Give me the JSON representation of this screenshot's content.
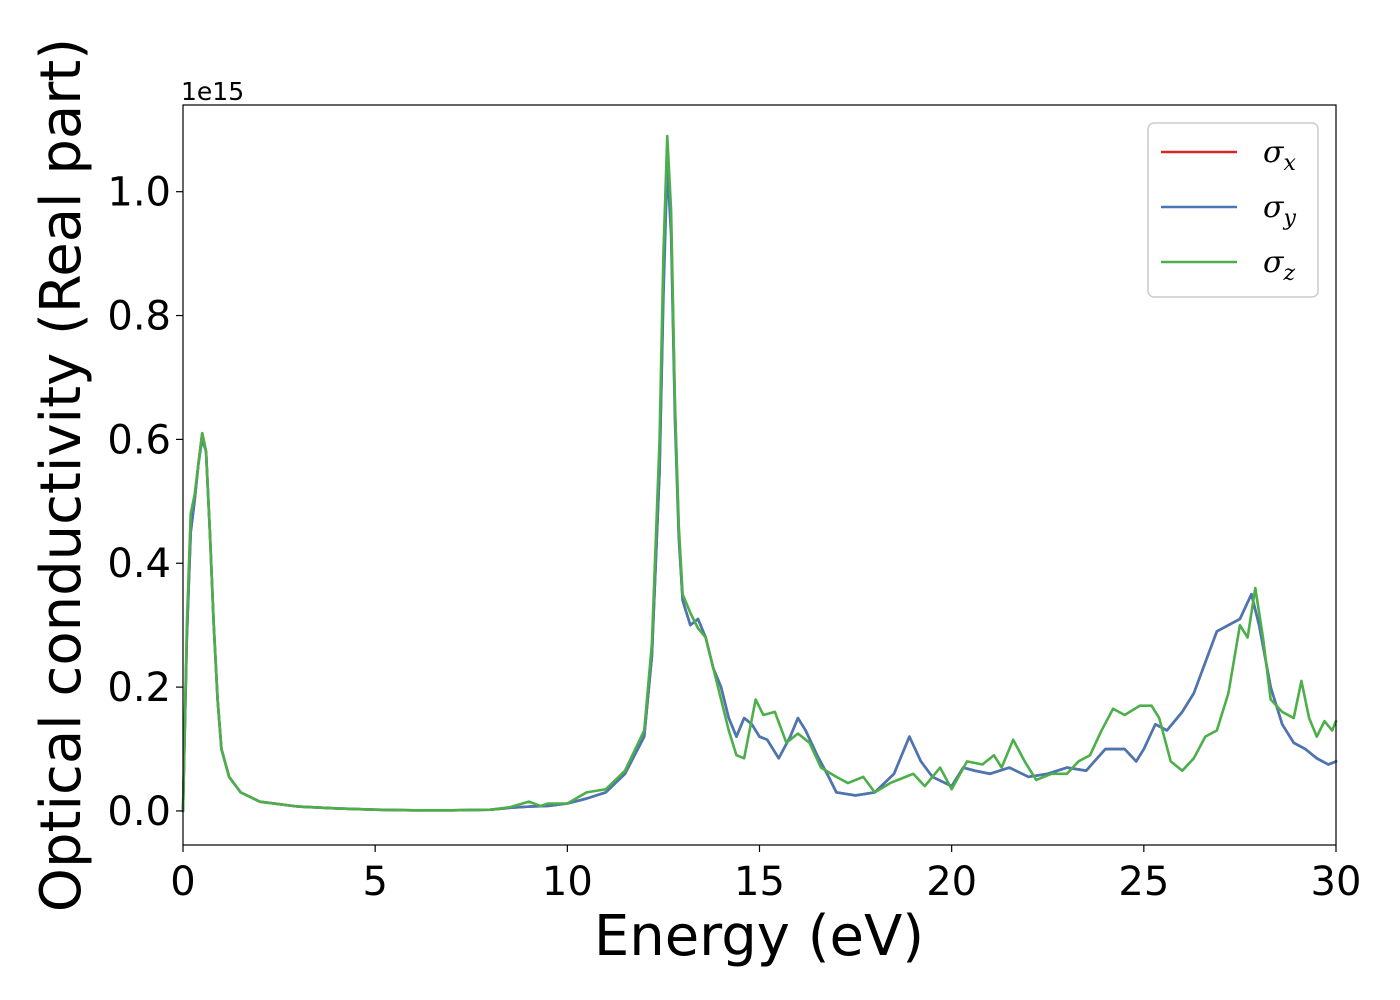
{
  "chart_data": {
    "type": "line",
    "xlabel": "Energy (eV)",
    "ylabel": "Optical conductivity (Real part)",
    "y_offset_label": "1e15",
    "y_scale_factor": 1000000000000000.0,
    "xlim": [
      0,
      30
    ],
    "ylim": [
      -0.055,
      1.14
    ],
    "x_ticks": [
      0,
      5,
      10,
      15,
      20,
      25,
      30
    ],
    "y_ticks": [
      0.0,
      0.2,
      0.4,
      0.6,
      0.8,
      1.0
    ],
    "x_tick_labels": [
      "0",
      "5",
      "10",
      "15",
      "20",
      "25",
      "30"
    ],
    "y_tick_labels": [
      "0.0",
      "0.2",
      "0.4",
      "0.6",
      "0.8",
      "1.0"
    ],
    "grid": false,
    "legend_position": "top-right",
    "series": [
      {
        "name": "σx",
        "color": "#d62728",
        "points": [
          [
            0,
            0.0
          ],
          [
            0.1,
            0.28
          ],
          [
            0.2,
            0.45
          ],
          [
            0.3,
            0.5
          ],
          [
            0.4,
            0.56
          ],
          [
            0.5,
            0.61
          ],
          [
            0.6,
            0.58
          ],
          [
            0.7,
            0.45
          ],
          [
            0.8,
            0.3
          ],
          [
            0.9,
            0.18
          ],
          [
            1.0,
            0.1
          ],
          [
            1.2,
            0.055
          ],
          [
            1.5,
            0.03
          ],
          [
            2.0,
            0.015
          ],
          [
            3.0,
            0.007
          ],
          [
            4.0,
            0.004
          ],
          [
            5.0,
            0.002
          ],
          [
            6.0,
            0.001
          ],
          [
            7.0,
            0.001
          ],
          [
            8.0,
            0.002
          ],
          [
            8.5,
            0.005
          ],
          [
            9.0,
            0.007
          ],
          [
            9.5,
            0.008
          ],
          [
            10.0,
            0.012
          ],
          [
            10.5,
            0.02
          ],
          [
            11.0,
            0.03
          ],
          [
            11.5,
            0.06
          ],
          [
            12.0,
            0.12
          ],
          [
            12.2,
            0.25
          ],
          [
            12.4,
            0.55
          ],
          [
            12.5,
            0.85
          ],
          [
            12.6,
            1.06
          ],
          [
            12.7,
            0.95
          ],
          [
            12.8,
            0.65
          ],
          [
            12.9,
            0.45
          ],
          [
            13.0,
            0.34
          ],
          [
            13.2,
            0.3
          ],
          [
            13.4,
            0.31
          ],
          [
            13.6,
            0.28
          ],
          [
            13.8,
            0.23
          ],
          [
            14.0,
            0.2
          ],
          [
            14.2,
            0.15
          ],
          [
            14.4,
            0.12
          ],
          [
            14.6,
            0.15
          ],
          [
            14.8,
            0.14
          ],
          [
            15.0,
            0.12
          ],
          [
            15.2,
            0.115
          ],
          [
            15.5,
            0.085
          ],
          [
            15.8,
            0.12
          ],
          [
            16.0,
            0.15
          ],
          [
            16.2,
            0.13
          ],
          [
            16.5,
            0.09
          ],
          [
            16.8,
            0.055
          ],
          [
            17.0,
            0.03
          ],
          [
            17.5,
            0.025
          ],
          [
            18.0,
            0.03
          ],
          [
            18.5,
            0.06
          ],
          [
            18.9,
            0.12
          ],
          [
            19.2,
            0.08
          ],
          [
            19.5,
            0.055
          ],
          [
            20.0,
            0.04
          ],
          [
            20.3,
            0.07
          ],
          [
            20.6,
            0.065
          ],
          [
            21.0,
            0.06
          ],
          [
            21.5,
            0.07
          ],
          [
            22.0,
            0.055
          ],
          [
            22.5,
            0.06
          ],
          [
            23.0,
            0.07
          ],
          [
            23.5,
            0.065
          ],
          [
            24.0,
            0.1
          ],
          [
            24.5,
            0.1
          ],
          [
            24.8,
            0.08
          ],
          [
            25.0,
            0.1
          ],
          [
            25.3,
            0.14
          ],
          [
            25.6,
            0.13
          ],
          [
            26.0,
            0.16
          ],
          [
            26.3,
            0.19
          ],
          [
            26.6,
            0.24
          ],
          [
            26.9,
            0.29
          ],
          [
            27.2,
            0.3
          ],
          [
            27.5,
            0.31
          ],
          [
            27.8,
            0.35
          ],
          [
            28.0,
            0.3
          ],
          [
            28.3,
            0.2
          ],
          [
            28.6,
            0.14
          ],
          [
            28.9,
            0.11
          ],
          [
            29.2,
            0.1
          ],
          [
            29.5,
            0.085
          ],
          [
            29.8,
            0.075
          ],
          [
            30.0,
            0.08
          ]
        ]
      },
      {
        "name": "σy",
        "color": "#4878b4",
        "points": [
          [
            0,
            0.0
          ],
          [
            0.1,
            0.28
          ],
          [
            0.2,
            0.45
          ],
          [
            0.3,
            0.5
          ],
          [
            0.4,
            0.56
          ],
          [
            0.5,
            0.6
          ],
          [
            0.6,
            0.58
          ],
          [
            0.7,
            0.45
          ],
          [
            0.8,
            0.3
          ],
          [
            0.9,
            0.18
          ],
          [
            1.0,
            0.1
          ],
          [
            1.2,
            0.055
          ],
          [
            1.5,
            0.03
          ],
          [
            2.0,
            0.015
          ],
          [
            3.0,
            0.007
          ],
          [
            4.0,
            0.004
          ],
          [
            5.0,
            0.002
          ],
          [
            6.0,
            0.001
          ],
          [
            7.0,
            0.001
          ],
          [
            8.0,
            0.002
          ],
          [
            8.5,
            0.005
          ],
          [
            9.0,
            0.007
          ],
          [
            9.5,
            0.008
          ],
          [
            10.0,
            0.012
          ],
          [
            10.5,
            0.02
          ],
          [
            11.0,
            0.03
          ],
          [
            11.5,
            0.06
          ],
          [
            12.0,
            0.12
          ],
          [
            12.2,
            0.25
          ],
          [
            12.4,
            0.55
          ],
          [
            12.5,
            0.83
          ],
          [
            12.6,
            1.04
          ],
          [
            12.7,
            0.93
          ],
          [
            12.8,
            0.63
          ],
          [
            12.9,
            0.44
          ],
          [
            13.0,
            0.34
          ],
          [
            13.2,
            0.3
          ],
          [
            13.4,
            0.31
          ],
          [
            13.6,
            0.28
          ],
          [
            13.8,
            0.23
          ],
          [
            14.0,
            0.2
          ],
          [
            14.2,
            0.15
          ],
          [
            14.4,
            0.12
          ],
          [
            14.6,
            0.15
          ],
          [
            14.8,
            0.14
          ],
          [
            15.0,
            0.12
          ],
          [
            15.2,
            0.115
          ],
          [
            15.5,
            0.085
          ],
          [
            15.8,
            0.12
          ],
          [
            16.0,
            0.15
          ],
          [
            16.2,
            0.13
          ],
          [
            16.5,
            0.09
          ],
          [
            16.8,
            0.055
          ],
          [
            17.0,
            0.03
          ],
          [
            17.5,
            0.025
          ],
          [
            18.0,
            0.03
          ],
          [
            18.5,
            0.06
          ],
          [
            18.9,
            0.12
          ],
          [
            19.2,
            0.08
          ],
          [
            19.5,
            0.055
          ],
          [
            20.0,
            0.04
          ],
          [
            20.3,
            0.07
          ],
          [
            20.6,
            0.065
          ],
          [
            21.0,
            0.06
          ],
          [
            21.5,
            0.07
          ],
          [
            22.0,
            0.055
          ],
          [
            22.5,
            0.06
          ],
          [
            23.0,
            0.07
          ],
          [
            23.5,
            0.065
          ],
          [
            24.0,
            0.1
          ],
          [
            24.5,
            0.1
          ],
          [
            24.8,
            0.08
          ],
          [
            25.0,
            0.1
          ],
          [
            25.3,
            0.14
          ],
          [
            25.6,
            0.13
          ],
          [
            26.0,
            0.16
          ],
          [
            26.3,
            0.19
          ],
          [
            26.6,
            0.24
          ],
          [
            26.9,
            0.29
          ],
          [
            27.2,
            0.3
          ],
          [
            27.5,
            0.31
          ],
          [
            27.8,
            0.35
          ],
          [
            28.0,
            0.3
          ],
          [
            28.3,
            0.2
          ],
          [
            28.6,
            0.14
          ],
          [
            28.9,
            0.11
          ],
          [
            29.2,
            0.1
          ],
          [
            29.5,
            0.085
          ],
          [
            29.8,
            0.075
          ],
          [
            30.0,
            0.08
          ]
        ]
      },
      {
        "name": "σz",
        "color": "#4daf4a",
        "points": [
          [
            0,
            0.0
          ],
          [
            0.1,
            0.3
          ],
          [
            0.2,
            0.48
          ],
          [
            0.3,
            0.51
          ],
          [
            0.4,
            0.56
          ],
          [
            0.5,
            0.61
          ],
          [
            0.6,
            0.58
          ],
          [
            0.7,
            0.45
          ],
          [
            0.8,
            0.3
          ],
          [
            0.9,
            0.18
          ],
          [
            1.0,
            0.1
          ],
          [
            1.2,
            0.055
          ],
          [
            1.5,
            0.03
          ],
          [
            2.0,
            0.015
          ],
          [
            3.0,
            0.007
          ],
          [
            4.0,
            0.004
          ],
          [
            5.0,
            0.002
          ],
          [
            6.0,
            0.001
          ],
          [
            7.0,
            0.001
          ],
          [
            8.0,
            0.002
          ],
          [
            8.5,
            0.006
          ],
          [
            9.0,
            0.015
          ],
          [
            9.3,
            0.008
          ],
          [
            9.5,
            0.012
          ],
          [
            10.0,
            0.012
          ],
          [
            10.5,
            0.03
          ],
          [
            11.0,
            0.035
          ],
          [
            11.5,
            0.065
          ],
          [
            12.0,
            0.13
          ],
          [
            12.2,
            0.27
          ],
          [
            12.4,
            0.6
          ],
          [
            12.5,
            0.9
          ],
          [
            12.6,
            1.09
          ],
          [
            12.7,
            0.97
          ],
          [
            12.8,
            0.66
          ],
          [
            12.9,
            0.46
          ],
          [
            13.0,
            0.35
          ],
          [
            13.2,
            0.32
          ],
          [
            13.4,
            0.295
          ],
          [
            13.6,
            0.28
          ],
          [
            13.8,
            0.23
          ],
          [
            14.0,
            0.18
          ],
          [
            14.2,
            0.13
          ],
          [
            14.4,
            0.09
          ],
          [
            14.6,
            0.085
          ],
          [
            14.9,
            0.18
          ],
          [
            15.1,
            0.155
          ],
          [
            15.4,
            0.16
          ],
          [
            15.7,
            0.11
          ],
          [
            16.0,
            0.125
          ],
          [
            16.3,
            0.11
          ],
          [
            16.6,
            0.07
          ],
          [
            17.0,
            0.055
          ],
          [
            17.3,
            0.045
          ],
          [
            17.7,
            0.055
          ],
          [
            18.0,
            0.03
          ],
          [
            18.4,
            0.045
          ],
          [
            18.8,
            0.055
          ],
          [
            19.0,
            0.06
          ],
          [
            19.3,
            0.04
          ],
          [
            19.7,
            0.07
          ],
          [
            20.0,
            0.035
          ],
          [
            20.4,
            0.08
          ],
          [
            20.8,
            0.075
          ],
          [
            21.1,
            0.09
          ],
          [
            21.3,
            0.07
          ],
          [
            21.6,
            0.115
          ],
          [
            21.9,
            0.08
          ],
          [
            22.2,
            0.05
          ],
          [
            22.6,
            0.06
          ],
          [
            23.0,
            0.06
          ],
          [
            23.3,
            0.08
          ],
          [
            23.6,
            0.09
          ],
          [
            23.9,
            0.13
          ],
          [
            24.2,
            0.165
          ],
          [
            24.5,
            0.155
          ],
          [
            24.9,
            0.17
          ],
          [
            25.2,
            0.17
          ],
          [
            25.4,
            0.15
          ],
          [
            25.7,
            0.08
          ],
          [
            26.0,
            0.065
          ],
          [
            26.3,
            0.085
          ],
          [
            26.6,
            0.12
          ],
          [
            26.9,
            0.13
          ],
          [
            27.2,
            0.19
          ],
          [
            27.5,
            0.3
          ],
          [
            27.7,
            0.28
          ],
          [
            27.9,
            0.36
          ],
          [
            28.1,
            0.28
          ],
          [
            28.3,
            0.18
          ],
          [
            28.6,
            0.16
          ],
          [
            28.9,
            0.15
          ],
          [
            29.1,
            0.21
          ],
          [
            29.3,
            0.15
          ],
          [
            29.5,
            0.12
          ],
          [
            29.7,
            0.145
          ],
          [
            29.9,
            0.13
          ],
          [
            30.0,
            0.145
          ]
        ]
      }
    ]
  }
}
